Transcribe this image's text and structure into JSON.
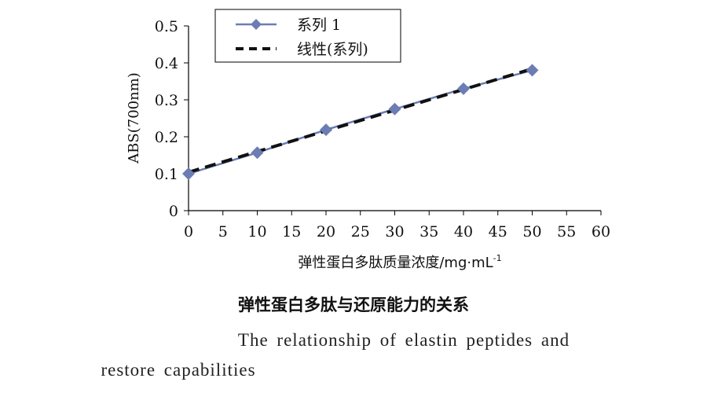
{
  "chart_data": {
    "type": "line",
    "x": [
      0,
      10,
      20,
      30,
      40,
      50
    ],
    "series": [
      {
        "name": "系列 1",
        "values": [
          0.1,
          0.157,
          0.219,
          0.275,
          0.33,
          0.38
        ],
        "color": "#6b7db3",
        "marker": "diamond"
      }
    ],
    "trendline": {
      "name": "线性(系列)",
      "slope": 0.0056,
      "intercept": 0.104,
      "x_range": [
        0,
        50
      ],
      "color": "#111111",
      "style": "dashed"
    },
    "xlabel": "弹性蛋白多肽质量浓度/mg·mL⁻¹",
    "ylabel": "ABS(700nm)",
    "xlim": [
      0,
      60
    ],
    "ylim": [
      0,
      0.5
    ],
    "xticks": [
      "0",
      "5",
      "10",
      "15",
      "20",
      "25",
      "30",
      "35",
      "40",
      "45",
      "50",
      "55",
      "60"
    ],
    "yticks": [
      "0",
      "0.1",
      "0.2",
      "0.3",
      "0.4",
      "0.5"
    ],
    "grid": false,
    "legend_position": "top-center"
  },
  "caption": {
    "cn": "弹性蛋白多肽与还原能力的关系",
    "en_line1": "The relationship of elastin peptides and",
    "en_line2": "restore capabilities"
  },
  "xlabel_parts": {
    "main": "弹性蛋白多肽质量浓度/mg·mL",
    "sup": "-1"
  }
}
